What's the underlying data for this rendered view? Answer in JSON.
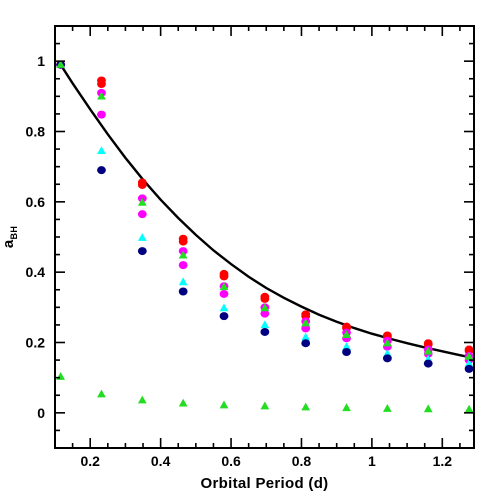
{
  "chart_data": {
    "type": "scatter",
    "title": "",
    "xlabel": "Orbital Period (d)",
    "ylabel_main": "a",
    "ylabel_sub": "BH",
    "xlim": [
      0.1,
      1.29
    ],
    "ylim": [
      -0.1,
      1.1
    ],
    "xticks": [
      0.2,
      0.4,
      0.6,
      0.8,
      1,
      1.2
    ],
    "xtick_labels": [
      "0.2",
      "0.4",
      "0.6",
      "0.8",
      "1",
      "1.2"
    ],
    "yticks": [
      0,
      0.2,
      0.4,
      0.6,
      0.8,
      1
    ],
    "ytick_labels": [
      "0",
      "0.2",
      "0.4",
      "0.6",
      "0.8",
      "1"
    ],
    "grid": false,
    "x": [
      0.116,
      0.232,
      0.348,
      0.464,
      0.58,
      0.696,
      0.812,
      0.928,
      1.044,
      1.16,
      1.276
    ],
    "series": [
      {
        "marker": "circle",
        "color": "#ff0000",
        "values": [
          0.99,
          0.945,
          0.655,
          0.495,
          0.395,
          0.33,
          0.28,
          0.245,
          0.22,
          0.198,
          0.18
        ]
      },
      {
        "marker": "circle",
        "color": "#ff0000",
        "values": [
          0.99,
          0.935,
          0.648,
          0.487,
          0.388,
          0.324,
          0.275,
          0.241,
          0.216,
          0.194,
          0.176
        ]
      },
      {
        "marker": "circle",
        "color": "#ff00ff",
        "values": [
          0.99,
          0.91,
          0.61,
          0.46,
          0.36,
          0.3,
          0.26,
          0.228,
          0.205,
          0.18,
          0.162
        ]
      },
      {
        "marker": "circle",
        "color": "#ff00ff",
        "values": [
          0.99,
          0.848,
          0.565,
          0.42,
          0.338,
          0.282,
          0.24,
          0.212,
          0.188,
          0.168,
          0.15
        ]
      },
      {
        "marker": "triangle",
        "color": "#00ffff",
        "values": [
          0.99,
          0.745,
          0.498,
          0.372,
          0.298,
          0.25,
          0.215,
          0.188,
          0.168,
          0.152,
          0.14
        ]
      },
      {
        "marker": "circle",
        "color": "#000080",
        "values": [
          0.99,
          0.69,
          0.46,
          0.345,
          0.275,
          0.23,
          0.198,
          0.173,
          0.155,
          0.14,
          0.125
        ]
      },
      {
        "marker": "triangle",
        "color": "#22dd22",
        "values": [
          0.99,
          0.9,
          0.598,
          0.448,
          0.358,
          0.298,
          0.255,
          0.222,
          0.198,
          0.175,
          0.16
        ]
      },
      {
        "marker": "triangle",
        "color": "#22dd22",
        "values": [
          0.103,
          0.053,
          0.036,
          0.027,
          0.022,
          0.019,
          0.016,
          0.014,
          0.012,
          0.011,
          0.01
        ]
      }
    ],
    "fit_curve": {
      "color": "#000000",
      "x": [
        0.116,
        0.15,
        0.2,
        0.25,
        0.3,
        0.35,
        0.4,
        0.45,
        0.5,
        0.55,
        0.6,
        0.65,
        0.7,
        0.75,
        0.8,
        0.85,
        0.9,
        0.95,
        1.0,
        1.05,
        1.1,
        1.15,
        1.2,
        1.25,
        1.28
      ],
      "y": [
        0.99,
        0.937,
        0.863,
        0.792,
        0.725,
        0.663,
        0.606,
        0.554,
        0.506,
        0.462,
        0.423,
        0.387,
        0.355,
        0.327,
        0.302,
        0.279,
        0.259,
        0.241,
        0.225,
        0.211,
        0.198,
        0.186,
        0.175,
        0.164,
        0.158
      ]
    }
  }
}
